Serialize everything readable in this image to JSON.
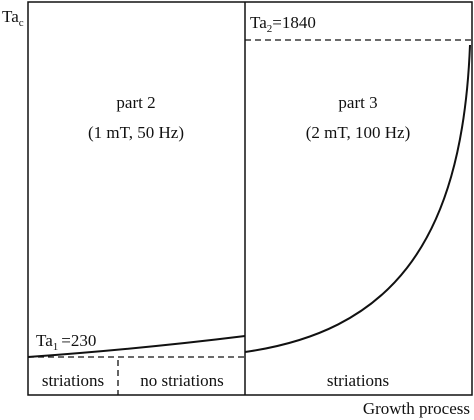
{
  "y_axis_label": {
    "base": "Ta",
    "sub": "c"
  },
  "x_axis_label": "Growth process",
  "part2": {
    "title": "part 2",
    "condition": "(1 mT, 50 Hz)",
    "threshold": {
      "base": "Ta",
      "sub": "1",
      "rest": "=230"
    },
    "regions": [
      "striations",
      "no striations"
    ]
  },
  "part3": {
    "title": "part 3",
    "condition": "(2 mT, 100 Hz)",
    "threshold": {
      "base": "Ta",
      "sub": "2",
      "rest": "=1840"
    },
    "regions": [
      "striations"
    ]
  }
}
